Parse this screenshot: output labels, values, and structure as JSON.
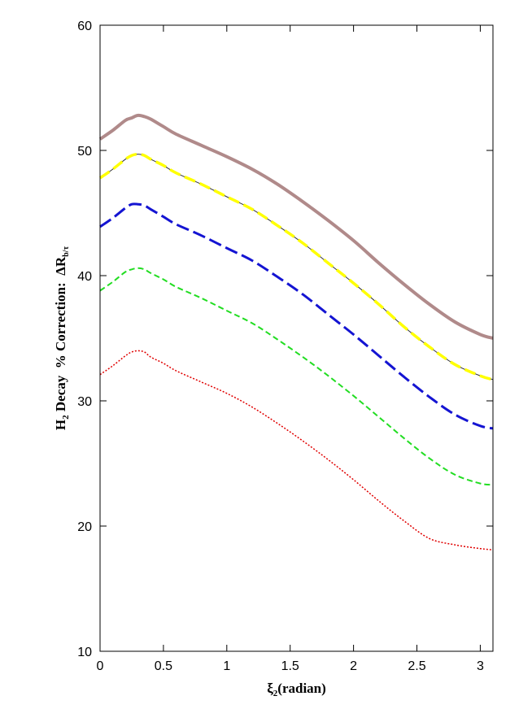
{
  "chart_data": {
    "type": "line",
    "xlabel": {
      "main": "ξ",
      "sub": "2",
      "rest": "(radian)"
    },
    "ylabel": {
      "p1": "H",
      "p1sub": "2",
      "p2": " Decay  % Correction:  ΔR",
      "p2sub": "b/τ"
    },
    "xlim": [
      0,
      3.1
    ],
    "ylim": [
      10,
      60
    ],
    "xticks": [
      0,
      0.5,
      1,
      1.5,
      2,
      2.5,
      3
    ],
    "xtick_labels": [
      "0",
      "0.5",
      "1",
      "1.5",
      "2",
      "2.5",
      "3"
    ],
    "yticks": [
      10,
      20,
      30,
      40,
      50,
      60
    ],
    "ytick_labels": [
      "10",
      "20",
      "30",
      "40",
      "50",
      "60"
    ],
    "x": [
      0,
      0.1,
      0.2,
      0.25,
      0.3,
      0.35,
      0.4,
      0.5,
      0.6,
      0.8,
      1.0,
      1.2,
      1.4,
      1.6,
      1.8,
      2.0,
      2.2,
      2.4,
      2.6,
      2.8,
      3.0,
      3.1
    ],
    "series": [
      {
        "color": "#b08a8a",
        "dash": "solid",
        "width": 4,
        "values": [
          50.9,
          51.6,
          52.4,
          52.6,
          52.8,
          52.7,
          52.5,
          51.9,
          51.3,
          50.4,
          49.5,
          48.5,
          47.3,
          45.9,
          44.4,
          42.8,
          41.0,
          39.3,
          37.7,
          36.3,
          35.3,
          35.0
        ]
      },
      {
        "color": "#ffff00",
        "dash": "long-dash",
        "width": 3.5,
        "values": [
          47.8,
          48.5,
          49.3,
          49.6,
          49.7,
          49.6,
          49.3,
          48.8,
          48.2,
          47.3,
          46.3,
          45.3,
          44.0,
          42.6,
          41.0,
          39.4,
          37.7,
          35.9,
          34.3,
          32.9,
          32.0,
          31.7
        ]
      },
      {
        "color": "#1414d2",
        "dash": "dashed",
        "width": 3,
        "values": [
          43.9,
          44.6,
          45.4,
          45.7,
          45.7,
          45.6,
          45.3,
          44.7,
          44.1,
          43.2,
          42.2,
          41.2,
          39.9,
          38.5,
          36.9,
          35.3,
          33.6,
          31.9,
          30.3,
          28.9,
          28.0,
          27.8
        ]
      },
      {
        "color": "#22dd22",
        "dash": "short-dash",
        "width": 2,
        "values": [
          38.8,
          39.5,
          40.3,
          40.5,
          40.6,
          40.5,
          40.2,
          39.7,
          39.1,
          38.2,
          37.2,
          36.2,
          34.9,
          33.5,
          32.0,
          30.4,
          28.7,
          27.0,
          25.4,
          24.1,
          23.4,
          23.3
        ]
      },
      {
        "color": "#e00000",
        "dash": "dotted",
        "width": 1.5,
        "values": [
          32.1,
          32.8,
          33.6,
          33.9,
          34.0,
          33.9,
          33.5,
          33.0,
          32.4,
          31.5,
          30.6,
          29.5,
          28.2,
          26.8,
          25.3,
          23.7,
          22.0,
          20.4,
          19.0,
          18.5,
          18.2,
          18.1
        ]
      }
    ]
  }
}
